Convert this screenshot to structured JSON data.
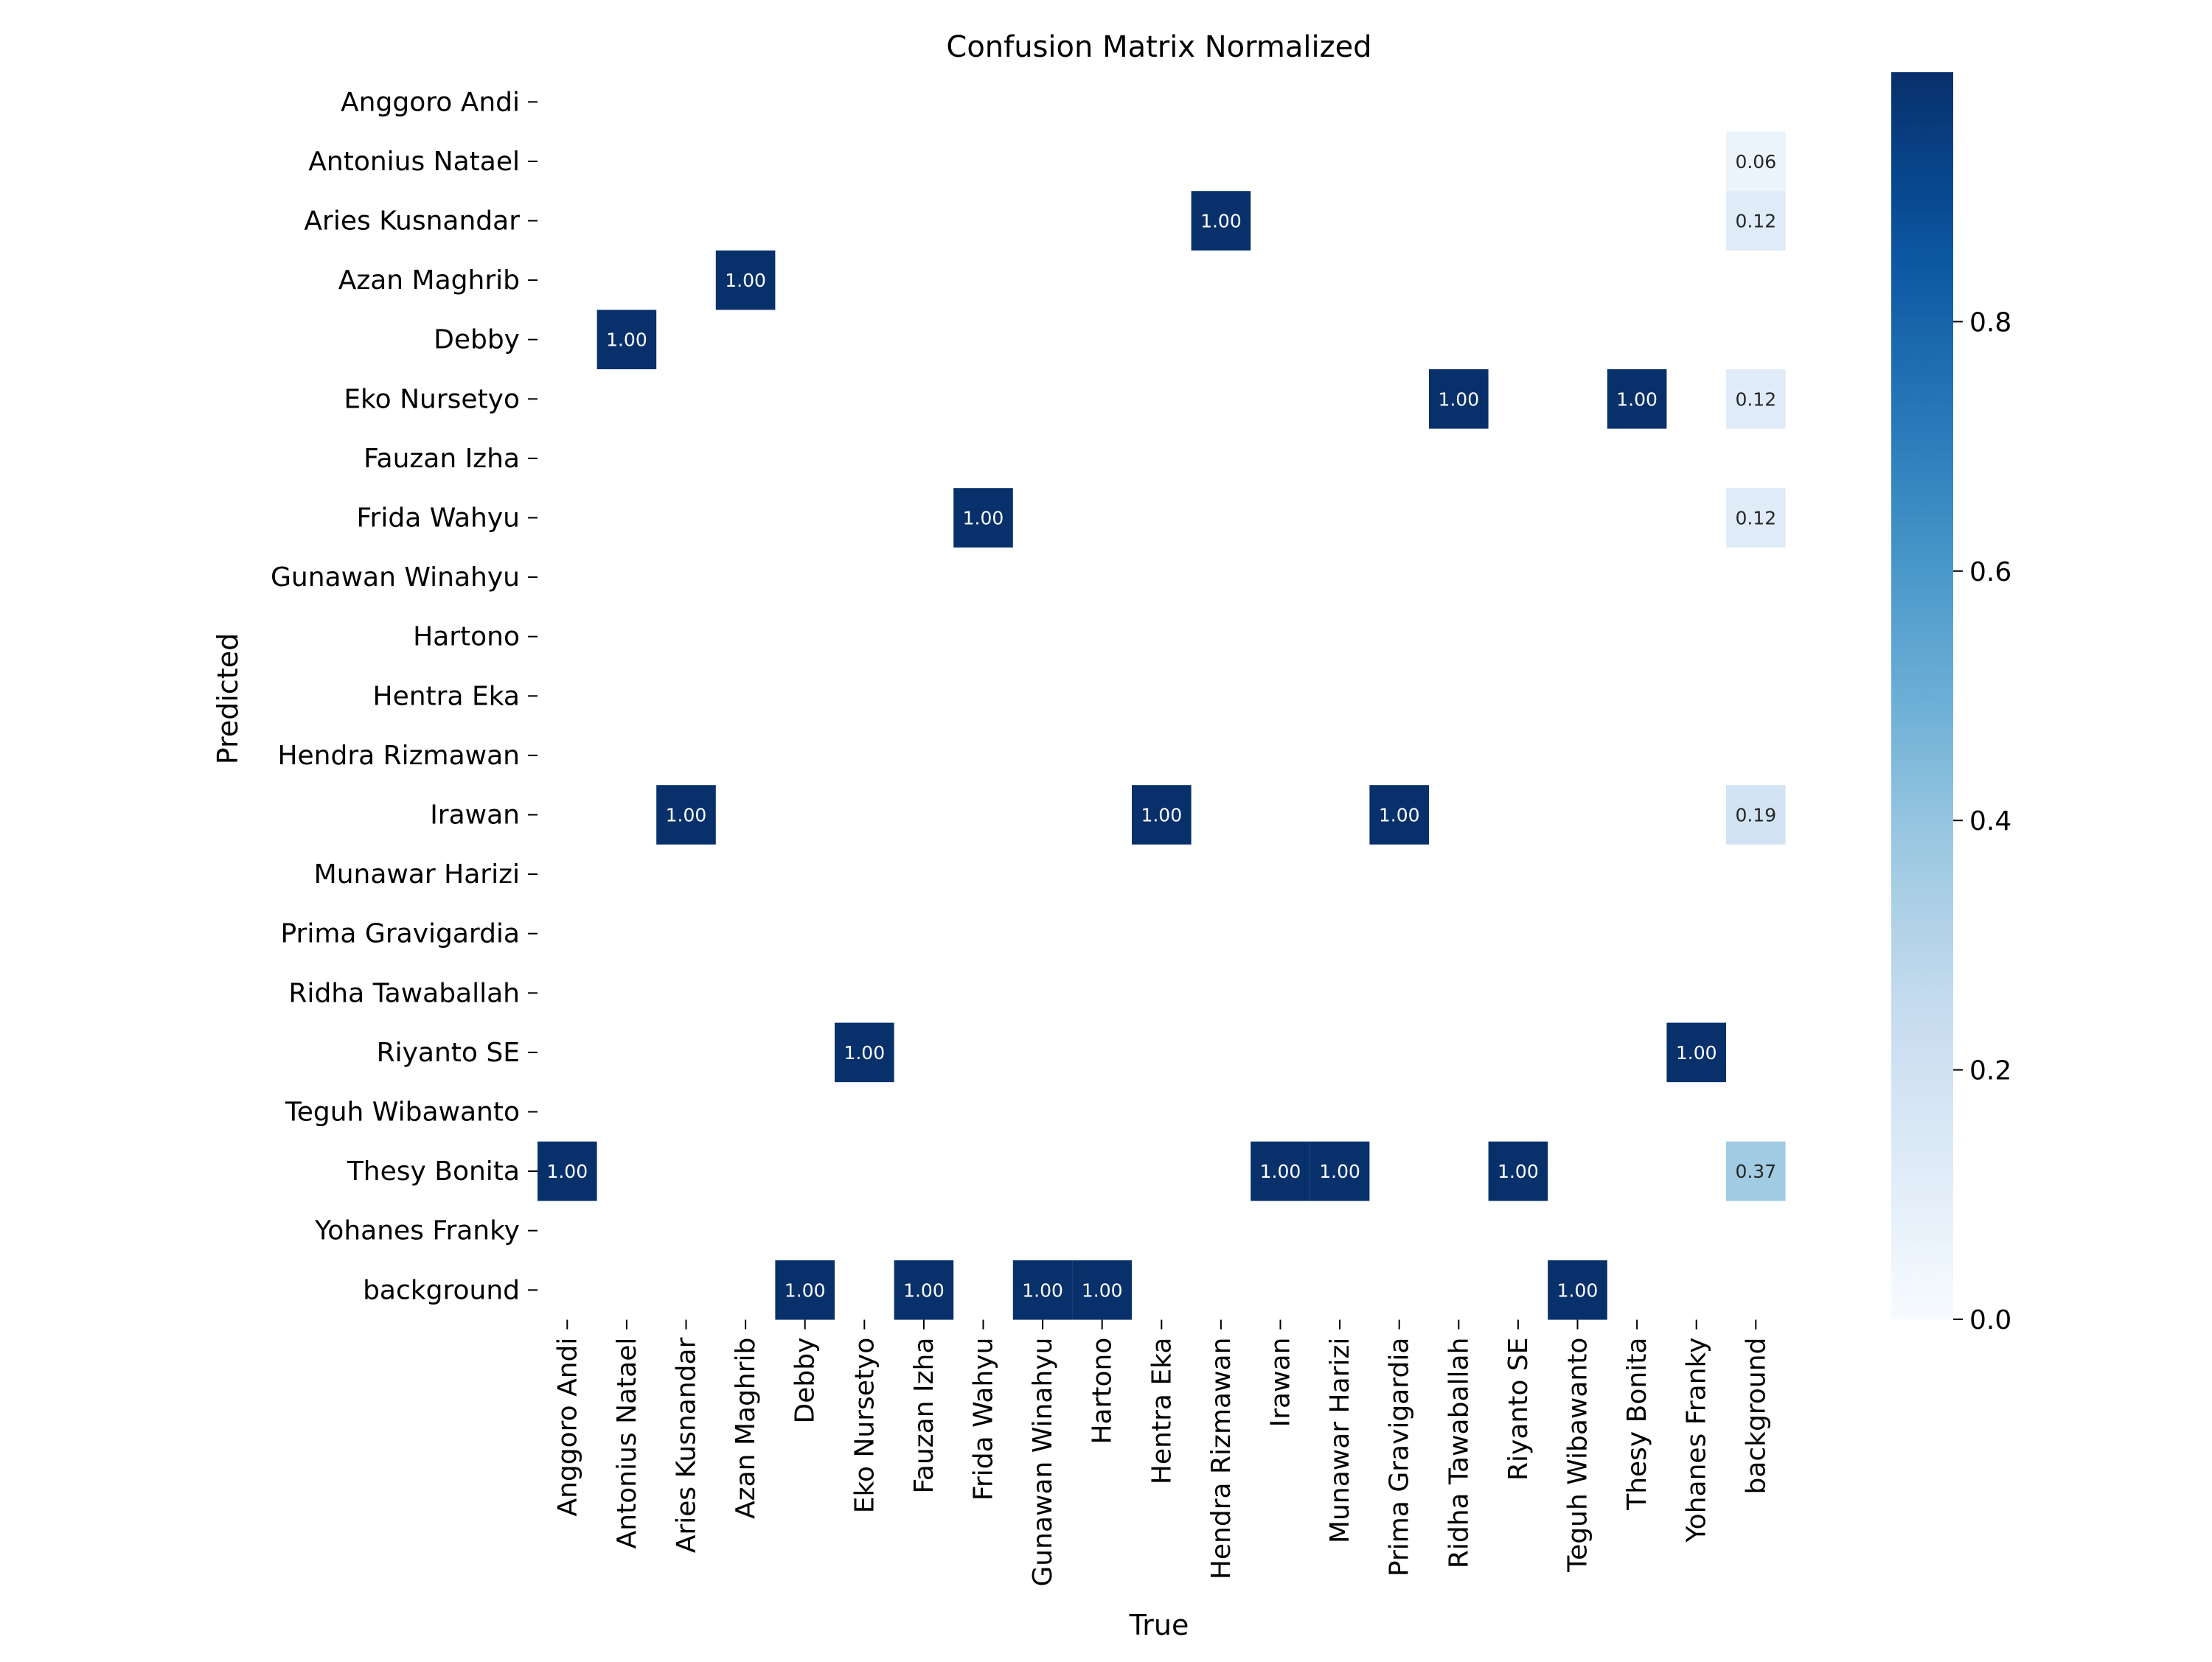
{
  "chart_data": {
    "type": "heatmap",
    "title": "Confusion Matrix Normalized",
    "xlabel": "True",
    "ylabel": "Predicted",
    "x_categories": [
      "Anggoro Andi",
      "Antonius Natael",
      "Aries Kusnandar",
      "Azan Maghrib",
      "Debby",
      "Eko Nursetyo",
      "Fauzan Izha",
      "Frida Wahyu",
      "Gunawan Winahyu",
      "Hartono",
      "Hentra Eka",
      "Hendra Rizmawan",
      "Irawan",
      "Munawar Harizi",
      "Prima Gravigardia",
      "Ridha Tawaballah",
      "Riyanto SE",
      "Teguh Wibawanto",
      "Thesy Bonita",
      "Yohanes Franky",
      "background"
    ],
    "y_categories": [
      "Anggoro Andi",
      "Antonius Natael",
      "Aries Kusnandar",
      "Azan Maghrib",
      "Debby",
      "Eko Nursetyo",
      "Fauzan Izha",
      "Frida Wahyu",
      "Gunawan Winahyu",
      "Hartono",
      "Hentra Eka",
      "Hendra Rizmawan",
      "Irawan",
      "Munawar Harizi",
      "Prima Gravigardia",
      "Ridha Tawaballah",
      "Riyanto SE",
      "Teguh Wibawanto",
      "Thesy Bonita",
      "Yohanes Franky",
      "background"
    ],
    "cells": [
      {
        "row": "Antonius Natael",
        "col": "background",
        "value": 0.06,
        "label": "0.06"
      },
      {
        "row": "Aries Kusnandar",
        "col": "Hendra Rizmawan",
        "value": 1.0,
        "label": "1.00"
      },
      {
        "row": "Aries Kusnandar",
        "col": "background",
        "value": 0.12,
        "label": "0.12"
      },
      {
        "row": "Azan Maghrib",
        "col": "Azan Maghrib",
        "value": 1.0,
        "label": "1.00"
      },
      {
        "row": "Debby",
        "col": "Antonius Natael",
        "value": 1.0,
        "label": "1.00"
      },
      {
        "row": "Eko Nursetyo",
        "col": "Ridha Tawaballah",
        "value": 1.0,
        "label": "1.00"
      },
      {
        "row": "Eko Nursetyo",
        "col": "Thesy Bonita",
        "value": 1.0,
        "label": "1.00"
      },
      {
        "row": "Eko Nursetyo",
        "col": "background",
        "value": 0.12,
        "label": "0.12"
      },
      {
        "row": "Frida Wahyu",
        "col": "Frida Wahyu",
        "value": 1.0,
        "label": "1.00"
      },
      {
        "row": "Frida Wahyu",
        "col": "background",
        "value": 0.12,
        "label": "0.12"
      },
      {
        "row": "Irawan",
        "col": "Aries Kusnandar",
        "value": 1.0,
        "label": "1.00"
      },
      {
        "row": "Irawan",
        "col": "Hentra Eka",
        "value": 1.0,
        "label": "1.00"
      },
      {
        "row": "Irawan",
        "col": "Prima Gravigardia",
        "value": 1.0,
        "label": "1.00"
      },
      {
        "row": "Irawan",
        "col": "background",
        "value": 0.19,
        "label": "0.19"
      },
      {
        "row": "Riyanto SE",
        "col": "Eko Nursetyo",
        "value": 1.0,
        "label": "1.00"
      },
      {
        "row": "Riyanto SE",
        "col": "Yohanes Franky",
        "value": 1.0,
        "label": "1.00"
      },
      {
        "row": "Thesy Bonita",
        "col": "Anggoro Andi",
        "value": 1.0,
        "label": "1.00"
      },
      {
        "row": "Thesy Bonita",
        "col": "Irawan",
        "value": 1.0,
        "label": "1.00"
      },
      {
        "row": "Thesy Bonita",
        "col": "Munawar Harizi",
        "value": 1.0,
        "label": "1.00"
      },
      {
        "row": "Thesy Bonita",
        "col": "Riyanto SE",
        "value": 1.0,
        "label": "1.00"
      },
      {
        "row": "Thesy Bonita",
        "col": "background",
        "value": 0.37,
        "label": "0.37"
      },
      {
        "row": "background",
        "col": "Debby",
        "value": 1.0,
        "label": "1.00"
      },
      {
        "row": "background",
        "col": "Fauzan Izha",
        "value": 1.0,
        "label": "1.00"
      },
      {
        "row": "background",
        "col": "Gunawan Winahyu",
        "value": 1.0,
        "label": "1.00"
      },
      {
        "row": "background",
        "col": "Hartono",
        "value": 1.0,
        "label": "1.00"
      },
      {
        "row": "background",
        "col": "Teguh Wibawanto",
        "value": 1.0,
        "label": "1.00"
      }
    ],
    "colorbar": {
      "range": [
        0.0,
        1.0
      ],
      "ticks": [
        0.0,
        0.2,
        0.4,
        0.6,
        0.8
      ],
      "tick_labels": [
        "0.0",
        "0.2",
        "0.4",
        "0.6",
        "0.8"
      ],
      "colormap": "Blues"
    }
  }
}
